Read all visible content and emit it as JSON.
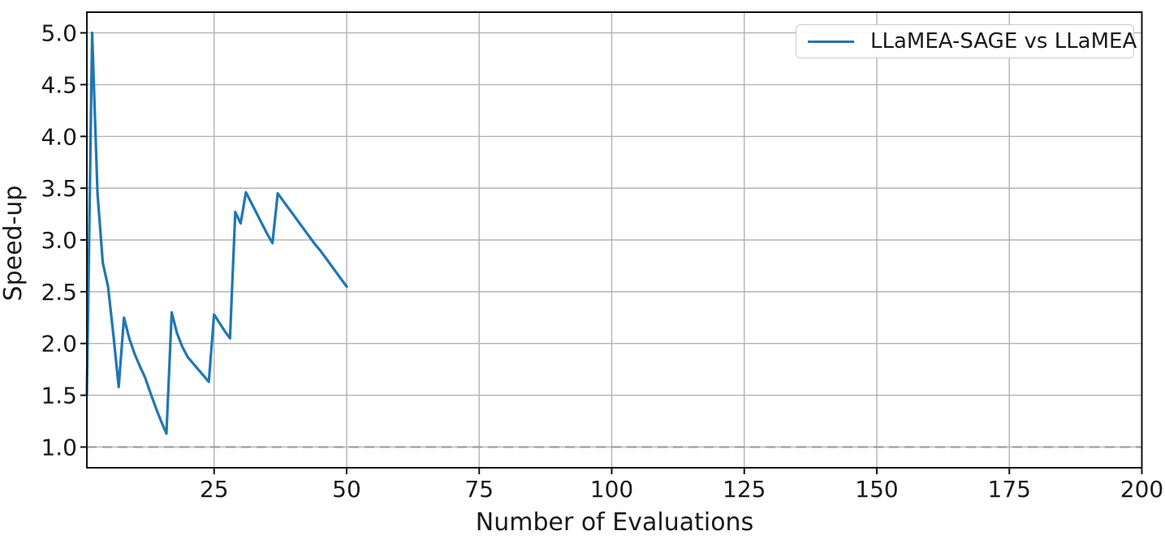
{
  "chart_data": {
    "type": "line",
    "title": "",
    "xlabel": "Number of Evaluations",
    "ylabel": "Speed-up",
    "xlim": [
      1,
      200
    ],
    "ylim": [
      0.8,
      5.2
    ],
    "grid": true,
    "grid_color": "#b3b3b3",
    "background": "#ffffff",
    "spine_color": "#111111",
    "legend_position": "upper right",
    "x_ticks": {
      "values": [
        25,
        50,
        75,
        100,
        125,
        150,
        175,
        200
      ],
      "labels": [
        "25",
        "50",
        "75",
        "100",
        "125",
        "150",
        "175",
        "200"
      ]
    },
    "y_ticks": {
      "values": [
        1.0,
        1.5,
        2.0,
        2.5,
        3.0,
        3.5,
        4.0,
        4.5,
        5.0
      ],
      "labels": [
        "1.0",
        "1.5",
        "2.0",
        "2.5",
        "3.0",
        "3.5",
        "4.0",
        "4.5",
        "5.0"
      ]
    },
    "baseline": {
      "y": 1.0,
      "style": "dashed",
      "color": "#9a9a9a"
    },
    "series": [
      {
        "name": "LLaMEA-SAGE vs LLaMEA",
        "color": "#1f77b4",
        "x": [
          1,
          2,
          3,
          4,
          5,
          6,
          7,
          8,
          9,
          10,
          11,
          12,
          13,
          14,
          15,
          16,
          17,
          18,
          19,
          20,
          21,
          22,
          23,
          24,
          25,
          26,
          27,
          28,
          29,
          30,
          31,
          32,
          33,
          34,
          35,
          36,
          37,
          38,
          39,
          40,
          41,
          42,
          43,
          44,
          45,
          46,
          47,
          48,
          49,
          50
        ],
        "y": [
          1.5,
          5.0,
          3.45,
          2.78,
          2.55,
          2.08,
          1.58,
          2.25,
          2.05,
          1.9,
          1.78,
          1.67,
          1.52,
          1.38,
          1.25,
          1.13,
          2.3,
          2.1,
          1.97,
          1.87,
          1.81,
          1.75,
          1.69,
          1.63,
          2.28,
          2.2,
          2.12,
          2.05,
          3.27,
          3.16,
          3.46,
          3.36,
          3.26,
          3.16,
          3.06,
          2.97,
          3.45,
          3.38,
          3.31,
          3.24,
          3.17,
          3.1,
          3.03,
          2.96,
          2.9,
          2.83,
          2.76,
          2.69,
          2.62,
          2.55
        ]
      }
    ]
  }
}
